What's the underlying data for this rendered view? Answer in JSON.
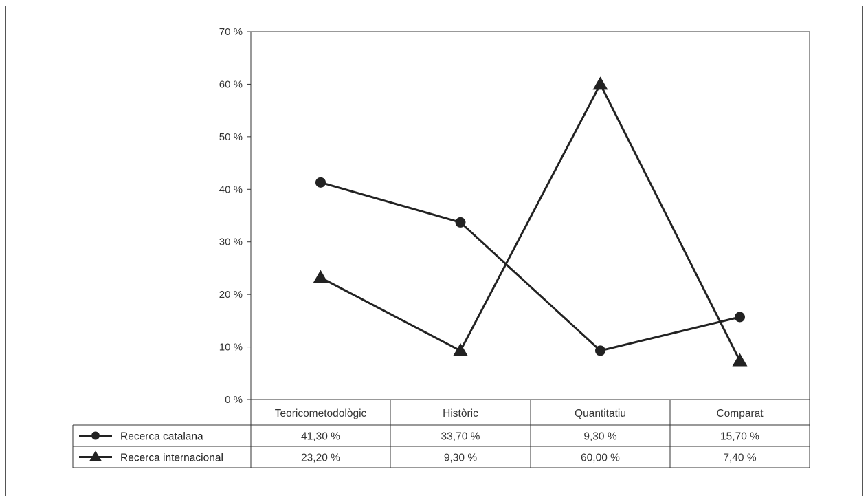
{
  "chart_data": {
    "type": "line",
    "categories": [
      "Teoricometodològic",
      "Històric",
      "Quantitatiu",
      "Comparat"
    ],
    "series": [
      {
        "name": "Recerca catalana",
        "marker": "circle",
        "values": [
          41.3,
          33.7,
          9.3,
          15.7
        ],
        "labels": [
          "41,30 %",
          "33,70 %",
          "9,30 %",
          "15,70 %"
        ]
      },
      {
        "name": "Recerca internacional",
        "marker": "triangle",
        "values": [
          23.2,
          9.3,
          60.0,
          7.4
        ],
        "labels": [
          "23,20 %",
          "9,30 %",
          "60,00 %",
          "7,40 %"
        ]
      }
    ],
    "yticks": [
      "0 %",
      "10 %",
      "20 %",
      "30 %",
      "40 %",
      "50 %",
      "60 %",
      "70 %"
    ],
    "ylim": [
      0,
      70
    ],
    "title": "",
    "xlabel": "",
    "ylabel": "",
    "grid": false,
    "legend": "data-table",
    "line_color": "#222222"
  }
}
